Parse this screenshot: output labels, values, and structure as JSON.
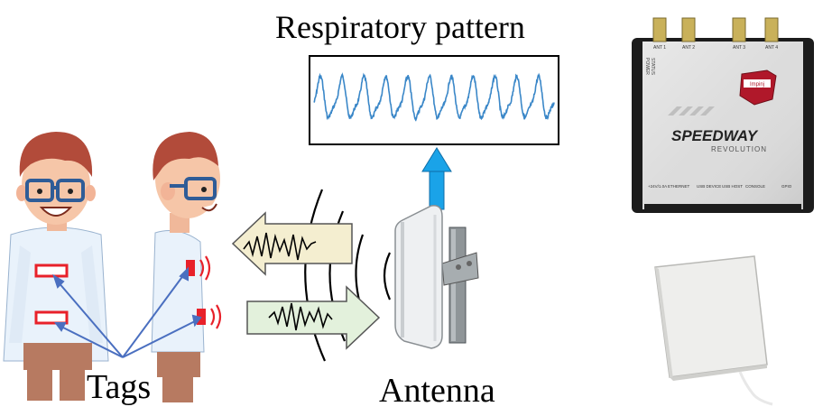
{
  "captions": {
    "respiratory_pattern": "Respiratory pattern",
    "tags": "Tags",
    "antenna": "Antenna"
  },
  "reader": {
    "brand": "SPEEDWAY",
    "model": "REVOLUTION",
    "ports_top": [
      "ANT 1",
      "ANT 2",
      "ANT 3",
      "ANT 4"
    ],
    "ports_bottom": [
      "+24V/1.0A",
      "ETHERNET",
      "USB DEVICE",
      "USB HOST",
      "CONSOLE",
      "GPIO"
    ],
    "side_labels": [
      "POWER",
      "STATUS"
    ],
    "badge": "Impinj"
  },
  "waveform": {
    "cycles": 11,
    "color": "#3a87c8"
  },
  "colors": {
    "tag": "#e8212a",
    "link_line": "#4a6fc0",
    "up_arrow": "#1aa3e8",
    "wave_in": "#f4eed0",
    "wave_out": "#e3f1dc"
  }
}
